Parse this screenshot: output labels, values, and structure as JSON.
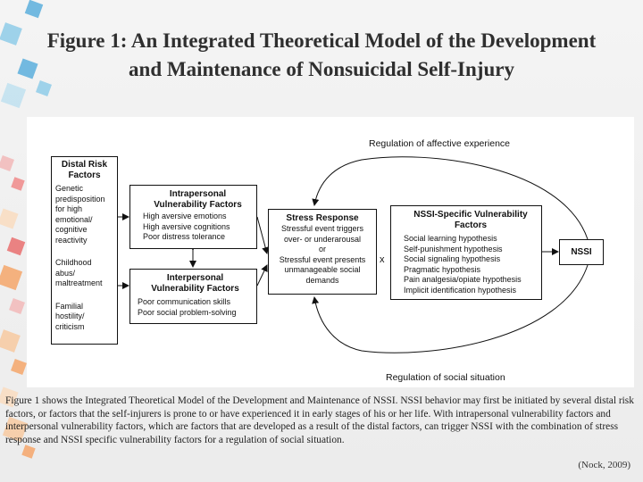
{
  "slide": {
    "title_line1": "Figure 1: An Integrated Theoretical Model of the Development",
    "title_line2": "and Maintenance of Nonsuicidal Self-Injury"
  },
  "diagram": {
    "top_label": "Regulation of affective experience",
    "bottom_label": "Regulation of social situation",
    "interaction_mark": "x",
    "distal": {
      "title_line1": "Distal Risk",
      "title_line2": "Factors",
      "item1": [
        "Genetic",
        "predisposition",
        "for high",
        "emotional/",
        "cognitive",
        "reactivity"
      ],
      "item2": [
        "Childhood",
        "abus/",
        "maltreatment"
      ],
      "item3": [
        "Familial",
        "hostility/",
        "criticism"
      ]
    },
    "intrapersonal": {
      "title_line1": "Intrapersonal",
      "title_line2": "Vulnerability Factors",
      "items": [
        "High aversive emotions",
        "High aversive cognitions",
        "Poor distress tolerance"
      ]
    },
    "interpersonal": {
      "title_line1": "Interpersonal",
      "title_line2": "Vulnerability Factors",
      "items": [
        "Poor communication skills",
        "Poor social problem-solving"
      ]
    },
    "stress": {
      "title": "Stress Response",
      "lines": [
        "Stressful event triggers",
        "over- or underarousal",
        "or",
        "Stressful event presents",
        "unmanageable social",
        "demands"
      ]
    },
    "nssi_specific": {
      "title_line1": "NSSI-Specific Vulnerability",
      "title_line2": "Factors",
      "items": [
        "Social learning hypothesis",
        "Self-punishment hypothesis",
        "Social signaling hypothesis",
        "Pragmatic hypothesis",
        "Pain analgesia/opiate hypothesis",
        "Implicit identification hypothesis"
      ]
    },
    "nssi": {
      "label": "NSSI"
    }
  },
  "caption": "Figure 1 shows the Integrated Theoretical Model of the Development and Maintenance of NSSI. NSSI behavior may first be initiated by several distal risk factors, or factors that the self-injurers is prone to or have experienced it in early stages of his or her life. With intrapersonal vulnerability factors and interpersonal vulnerability factors, which are factors that are developed as a result of the distal factors, can trigger NSSI with the combination of stress response and NSSI specific vulnerability factors for a regulation of social situation.",
  "citation": "(Nock, 2009)",
  "colors": {
    "deco": [
      "#5aaedc",
      "#8ecbe8",
      "#f2b8b8",
      "#f08a8a",
      "#f7c9a0",
      "#f4a66a",
      "#bfe0f0",
      "#e96f6f",
      "#f9dcc0"
    ]
  }
}
